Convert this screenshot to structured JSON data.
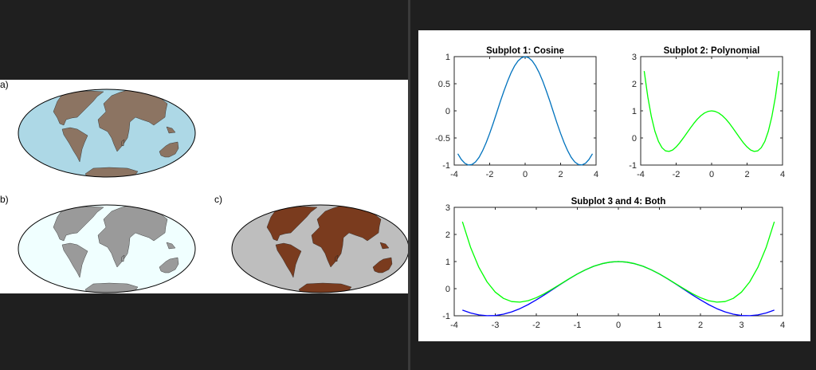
{
  "left_figure": {
    "maps": [
      {
        "label": "a)",
        "ocean_color": "#ADD8E6",
        "land_color": "#8C7462"
      },
      {
        "label": "b)",
        "ocean_color": "#F0FFFF",
        "land_color": "#9A9A9A"
      },
      {
        "label": "c)",
        "ocean_color": "#BEBEBE",
        "land_color": "#7A3B1E"
      }
    ]
  },
  "chart_data": [
    {
      "type": "line",
      "title": "Subplot 1: Cosine",
      "xlim": [
        -4,
        4
      ],
      "ylim": [
        -1,
        1
      ],
      "xticks": [
        "-4",
        "-2",
        "0",
        "2",
        "4"
      ],
      "yticks": [
        "-1",
        "-0.5",
        "0",
        "0.5",
        "1"
      ],
      "x": [
        -3.8,
        -3.6,
        -3.4,
        -3.2,
        -3.0,
        -2.8,
        -2.6,
        -2.4,
        -2.2,
        -2.0,
        -1.8,
        -1.6,
        -1.4,
        -1.2,
        -1.0,
        -0.8,
        -0.6,
        -0.4,
        -0.2,
        0,
        0.2,
        0.4,
        0.6,
        0.8,
        1.0,
        1.2,
        1.4,
        1.6,
        1.8,
        2.0,
        2.2,
        2.4,
        2.6,
        2.8,
        3.0,
        3.2,
        3.4,
        3.6,
        3.8
      ],
      "series": [
        {
          "color": "#0072BD",
          "y": [
            -0.791,
            -0.897,
            -0.967,
            -0.998,
            -0.99,
            -0.942,
            -0.857,
            -0.737,
            -0.589,
            -0.416,
            -0.227,
            -0.029,
            0.17,
            0.362,
            0.54,
            0.697,
            0.825,
            0.921,
            0.98,
            1,
            0.98,
            0.921,
            0.825,
            0.697,
            0.54,
            0.362,
            0.17,
            -0.029,
            -0.227,
            -0.416,
            -0.589,
            -0.737,
            -0.857,
            -0.942,
            -0.99,
            -0.998,
            -0.967,
            -0.897,
            -0.791
          ]
        }
      ]
    },
    {
      "type": "line",
      "title": "Subplot 2: Polynomial",
      "xlim": [
        -4,
        4
      ],
      "ylim": [
        -1,
        3
      ],
      "xticks": [
        "-4",
        "-2",
        "0",
        "2",
        "4"
      ],
      "yticks": [
        "-1",
        "0",
        "1",
        "2",
        "3"
      ],
      "x": [
        -3.8,
        -3.6,
        -3.4,
        -3.2,
        -3.0,
        -2.8,
        -2.6,
        -2.4,
        -2.2,
        -2.0,
        -1.8,
        -1.6,
        -1.4,
        -1.2,
        -1.0,
        -0.8,
        -0.6,
        -0.4,
        -0.2,
        0,
        0.2,
        0.4,
        0.6,
        0.8,
        1.0,
        1.2,
        1.4,
        1.6,
        1.8,
        2.0,
        2.2,
        2.4,
        2.6,
        2.8,
        3.0,
        3.2,
        3.4,
        3.6,
        3.8
      ],
      "series": [
        {
          "color": "#00FF00",
          "y": [
            2.468,
            1.518,
            0.788,
            0.249,
            -0.125,
            -0.359,
            -0.476,
            -0.498,
            -0.444,
            -0.333,
            -0.183,
            -0.007,
            0.18,
            0.366,
            0.542,
            0.697,
            0.825,
            0.921,
            0.98,
            1,
            0.98,
            0.921,
            0.825,
            0.697,
            0.542,
            0.366,
            0.18,
            -0.007,
            -0.183,
            -0.333,
            -0.444,
            -0.498,
            -0.476,
            -0.359,
            -0.125,
            0.249,
            0.788,
            1.518,
            2.468
          ]
        }
      ]
    },
    {
      "type": "line",
      "title": "Subplot 3 and 4: Both",
      "xlim": [
        -4,
        4
      ],
      "ylim": [
        -1,
        3
      ],
      "xticks": [
        "-4",
        "-3",
        "-2",
        "-1",
        "0",
        "1",
        "2",
        "3",
        "4"
      ],
      "yticks": [
        "-1",
        "0",
        "1",
        "2",
        "3"
      ],
      "x": [
        -3.8,
        -3.6,
        -3.4,
        -3.2,
        -3.0,
        -2.8,
        -2.6,
        -2.4,
        -2.2,
        -2.0,
        -1.8,
        -1.6,
        -1.4,
        -1.2,
        -1.0,
        -0.8,
        -0.6,
        -0.4,
        -0.2,
        0,
        0.2,
        0.4,
        0.6,
        0.8,
        1.0,
        1.2,
        1.4,
        1.6,
        1.8,
        2.0,
        2.2,
        2.4,
        2.6,
        2.8,
        3.0,
        3.2,
        3.4,
        3.6,
        3.8
      ],
      "series": [
        {
          "color": "#0000FF",
          "y": [
            -0.791,
            -0.897,
            -0.967,
            -0.998,
            -0.99,
            -0.942,
            -0.857,
            -0.737,
            -0.589,
            -0.416,
            -0.227,
            -0.029,
            0.17,
            0.362,
            0.54,
            0.697,
            0.825,
            0.921,
            0.98,
            1,
            0.98,
            0.921,
            0.825,
            0.697,
            0.54,
            0.362,
            0.17,
            -0.029,
            -0.227,
            -0.416,
            -0.589,
            -0.737,
            -0.857,
            -0.942,
            -0.99,
            -0.998,
            -0.967,
            -0.897,
            -0.791
          ]
        },
        {
          "color": "#00FF00",
          "y": [
            2.468,
            1.518,
            0.788,
            0.249,
            -0.125,
            -0.359,
            -0.476,
            -0.498,
            -0.444,
            -0.333,
            -0.183,
            -0.007,
            0.18,
            0.366,
            0.542,
            0.697,
            0.825,
            0.921,
            0.98,
            1,
            0.98,
            0.921,
            0.825,
            0.697,
            0.542,
            0.366,
            0.18,
            -0.007,
            -0.183,
            -0.333,
            -0.444,
            -0.498,
            -0.476,
            -0.359,
            -0.125,
            0.249,
            0.788,
            1.518,
            2.468
          ]
        }
      ]
    }
  ]
}
